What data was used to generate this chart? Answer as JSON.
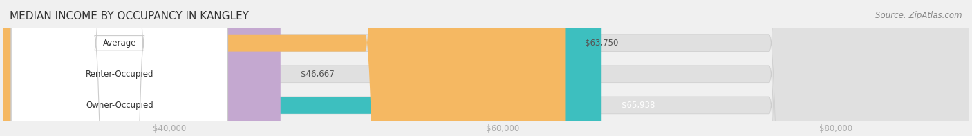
{
  "title": "MEDIAN INCOME BY OCCUPANCY IN KANGLEY",
  "source": "Source: ZipAtlas.com",
  "categories": [
    "Owner-Occupied",
    "Renter-Occupied",
    "Average"
  ],
  "values": [
    65938,
    46667,
    63750
  ],
  "bar_colors": [
    "#3dbfbf",
    "#c4a8d0",
    "#f5b862"
  ],
  "bar_edge_colors": [
    "#2aa8a8",
    "#b090be",
    "#e0a040"
  ],
  "value_labels": [
    "$65,938",
    "$46,667",
    "$63,750"
  ],
  "value_label_colors": [
    "#ffffff",
    "#555555",
    "#555555"
  ],
  "xmin": 30000,
  "xmax": 88000,
  "xticks": [
    40000,
    60000,
    80000
  ],
  "xtick_labels": [
    "$40,000",
    "$60,000",
    "$80,000"
  ],
  "background_color": "#f0f0f0",
  "bar_bg_color": "#e8e8e8",
  "title_fontsize": 11,
  "source_fontsize": 8.5,
  "label_fontsize": 8.5,
  "value_fontsize": 8.5,
  "tick_fontsize": 8.5
}
